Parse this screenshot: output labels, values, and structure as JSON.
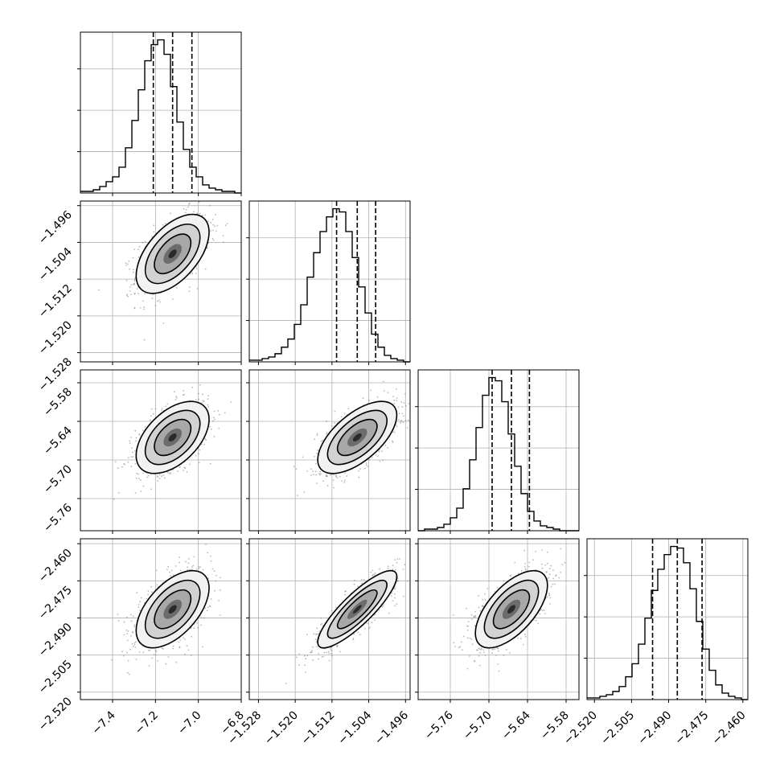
{
  "chart_data": {
    "type": "corner",
    "grid": true,
    "parameters": [
      {
        "range": [
          -7.55,
          -6.8
        ],
        "ticks": [
          -7.4,
          -7.2,
          -7.0,
          -6.8
        ],
        "tick_labels": [
          "−7.4",
          "−7.2",
          "−7.0",
          "−6.8"
        ],
        "center": -7.12,
        "sigma": 0.085,
        "quantiles": [
          -7.21,
          -7.12,
          -7.03
        ],
        "hist": [
          1,
          1,
          2,
          4,
          7,
          10,
          16,
          28,
          45,
          64,
          82,
          92,
          95,
          86,
          66,
          44,
          27,
          16,
          10,
          5,
          3,
          2,
          1,
          1,
          0
        ]
      },
      {
        "range": [
          -1.53,
          -1.495
        ],
        "ticks": [
          -1.528,
          -1.52,
          -1.512,
          -1.504,
          -1.496
        ],
        "tick_labels": [
          "−1.528",
          "−1.520",
          "−1.512",
          "−1.504",
          "−1.496"
        ],
        "center": -1.5065,
        "sigma": 0.0043,
        "quantiles": [
          -1.511,
          -1.5065,
          -1.5025
        ],
        "hist": [
          1,
          1,
          2,
          3,
          5,
          9,
          14,
          23,
          35,
          52,
          67,
          80,
          89,
          94,
          92,
          80,
          64,
          46,
          30,
          17,
          9,
          4,
          2,
          1,
          0
        ]
      },
      {
        "range": [
          -5.81,
          -5.56
        ],
        "ticks": [
          -5.76,
          -5.7,
          -5.64,
          -5.58
        ],
        "tick_labels": [
          "−5.76",
          "−5.70",
          "−5.64",
          "−5.58"
        ],
        "center": -5.665,
        "sigma": 0.028,
        "quantiles": [
          -5.695,
          -5.665,
          -5.637
        ],
        "hist": [
          0,
          1,
          1,
          2,
          4,
          8,
          14,
          26,
          44,
          64,
          84,
          95,
          93,
          80,
          60,
          40,
          23,
          12,
          6,
          3,
          2,
          1,
          0,
          0,
          0
        ]
      },
      {
        "range": [
          -2.523,
          -2.458
        ],
        "ticks": [
          -2.52,
          -2.505,
          -2.49,
          -2.475,
          -2.46
        ],
        "tick_labels": [
          "−2.520",
          "−2.505",
          "−2.490",
          "−2.475",
          "−2.460"
        ],
        "center": -2.4865,
        "sigma": 0.0078,
        "quantiles": [
          -2.4965,
          -2.4865,
          -2.4765
        ],
        "hist": [
          1,
          1,
          2,
          3,
          5,
          8,
          14,
          22,
          34,
          50,
          67,
          80,
          89,
          94,
          93,
          84,
          68,
          48,
          31,
          18,
          9,
          4,
          2,
          1,
          0
        ]
      }
    ],
    "correlations": [
      [
        1.0,
        0.55,
        0.5,
        0.55
      ],
      [
        0.55,
        1.0,
        0.62,
        0.85
      ],
      [
        0.5,
        0.62,
        1.0,
        0.62
      ],
      [
        0.55,
        0.85,
        0.62,
        1.0
      ]
    ],
    "contour_levels": [
      0.5,
      1.0,
      1.5,
      2.0
    ]
  }
}
